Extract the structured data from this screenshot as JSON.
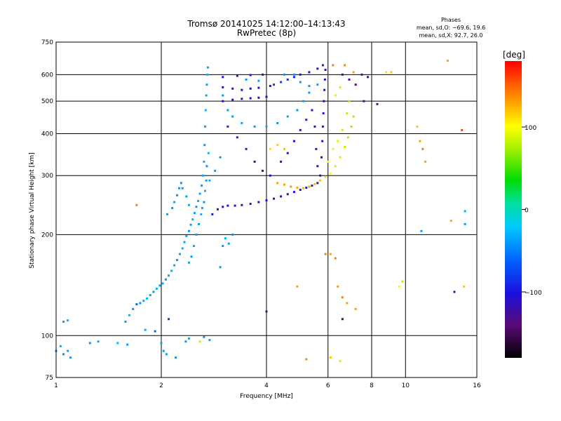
{
  "title_line1": "Tromsø 20141025 14:12:00–14:13:43",
  "title_line2": "RwPretec (8p)",
  "stats": {
    "heading": "Phases",
    "line1": "mean, sd,O: −69.6, 19.6",
    "line2": "mean, sd,X:  92.7, 26.0"
  },
  "colorbar": {
    "label": "[deg]",
    "range": [
      -180,
      180
    ],
    "ticks": [
      {
        "value": 100,
        "label": "100"
      },
      {
        "value": 0,
        "label": "0"
      },
      {
        "value": -100,
        "label": "−100"
      }
    ]
  },
  "chart_data": {
    "type": "scatter",
    "xlabel": "Frequency [MHz]",
    "ylabel": "Stationary phase Virtual Height [km]",
    "xscale": "log",
    "yscale": "log",
    "xlim": [
      1,
      16
    ],
    "ylim": [
      75,
      750
    ],
    "xticks": [
      {
        "value": 1,
        "label": "1"
      },
      {
        "value": 2,
        "label": "2"
      },
      {
        "value": 4,
        "label": "4"
      },
      {
        "value": 6,
        "label": "6"
      },
      {
        "value": 8,
        "label": "8"
      },
      {
        "value": 10,
        "label": "10"
      },
      {
        "value": 16,
        "label": "16"
      }
    ],
    "yticks": [
      {
        "value": 75,
        "label": "75"
      },
      {
        "value": 100,
        "label": "100"
      },
      {
        "value": 200,
        "label": "200"
      },
      {
        "value": 300,
        "label": "300"
      },
      {
        "value": 400,
        "label": "400"
      },
      {
        "value": 500,
        "label": "500"
      },
      {
        "value": 600,
        "label": "600"
      },
      {
        "value": 750,
        "label": "750"
      }
    ],
    "grid": true,
    "color_by": "phase",
    "points": [
      {
        "x": 1.0,
        "y": 90,
        "phase": -40
      },
      {
        "x": 1.03,
        "y": 93,
        "phase": -30
      },
      {
        "x": 1.05,
        "y": 88,
        "phase": -45
      },
      {
        "x": 1.08,
        "y": 90,
        "phase": -35
      },
      {
        "x": 1.1,
        "y": 86,
        "phase": -40
      },
      {
        "x": 1.05,
        "y": 110,
        "phase": -35
      },
      {
        "x": 1.08,
        "y": 111,
        "phase": -30
      },
      {
        "x": 1.25,
        "y": 95,
        "phase": -40
      },
      {
        "x": 1.32,
        "y": 96,
        "phase": -35
      },
      {
        "x": 1.5,
        "y": 95,
        "phase": -30
      },
      {
        "x": 1.6,
        "y": 94,
        "phase": -40
      },
      {
        "x": 1.58,
        "y": 110,
        "phase": -35
      },
      {
        "x": 1.62,
        "y": 115,
        "phase": -30
      },
      {
        "x": 1.66,
        "y": 120,
        "phase": -40
      },
      {
        "x": 1.7,
        "y": 124,
        "phase": -60
      },
      {
        "x": 1.74,
        "y": 125,
        "phase": -40
      },
      {
        "x": 1.78,
        "y": 127,
        "phase": -35
      },
      {
        "x": 1.82,
        "y": 129,
        "phase": -30
      },
      {
        "x": 1.86,
        "y": 132,
        "phase": -35
      },
      {
        "x": 1.9,
        "y": 135,
        "phase": -40
      },
      {
        "x": 1.94,
        "y": 138,
        "phase": -30
      },
      {
        "x": 1.98,
        "y": 141,
        "phase": -35
      },
      {
        "x": 2.02,
        "y": 143,
        "phase": -30
      },
      {
        "x": 2.06,
        "y": 147,
        "phase": -40
      },
      {
        "x": 2.1,
        "y": 151,
        "phase": -35
      },
      {
        "x": 2.14,
        "y": 156,
        "phase": -30
      },
      {
        "x": 2.18,
        "y": 162,
        "phase": -35
      },
      {
        "x": 2.22,
        "y": 168,
        "phase": -40
      },
      {
        "x": 2.26,
        "y": 175,
        "phase": -35
      },
      {
        "x": 2.3,
        "y": 182,
        "phase": -30
      },
      {
        "x": 2.33,
        "y": 190,
        "phase": -35
      },
      {
        "x": 2.36,
        "y": 198,
        "phase": -30
      },
      {
        "x": 2.4,
        "y": 205,
        "phase": -40
      },
      {
        "x": 2.43,
        "y": 214,
        "phase": -35
      },
      {
        "x": 2.46,
        "y": 222,
        "phase": -30
      },
      {
        "x": 2.49,
        "y": 232,
        "phase": -35
      },
      {
        "x": 2.52,
        "y": 242,
        "phase": -40
      },
      {
        "x": 2.55,
        "y": 252,
        "phase": -30
      },
      {
        "x": 2.58,
        "y": 265,
        "phase": -35
      },
      {
        "x": 2.61,
        "y": 280,
        "phase": -40
      },
      {
        "x": 2.63,
        "y": 300,
        "phase": -35
      },
      {
        "x": 2.65,
        "y": 330,
        "phase": -30
      },
      {
        "x": 2.66,
        "y": 370,
        "phase": -40
      },
      {
        "x": 2.67,
        "y": 420,
        "phase": -35
      },
      {
        "x": 2.68,
        "y": 470,
        "phase": -30
      },
      {
        "x": 2.69,
        "y": 520,
        "phase": -35
      },
      {
        "x": 2.7,
        "y": 560,
        "phase": -40
      },
      {
        "x": 2.71,
        "y": 600,
        "phase": -30
      },
      {
        "x": 2.72,
        "y": 630,
        "phase": -35
      },
      {
        "x": 2.52,
        "y": 200,
        "phase": -35
      },
      {
        "x": 2.56,
        "y": 215,
        "phase": -40
      },
      {
        "x": 2.6,
        "y": 230,
        "phase": -30
      },
      {
        "x": 2.48,
        "y": 185,
        "phase": -35
      },
      {
        "x": 2.44,
        "y": 172,
        "phase": -40
      },
      {
        "x": 2.4,
        "y": 165,
        "phase": -30
      },
      {
        "x": 2.62,
        "y": 240,
        "phase": -35
      },
      {
        "x": 2.65,
        "y": 250,
        "phase": -40
      },
      {
        "x": 2.67,
        "y": 270,
        "phase": -30
      },
      {
        "x": 2.69,
        "y": 290,
        "phase": -35
      },
      {
        "x": 2.7,
        "y": 320,
        "phase": -40
      },
      {
        "x": 2.73,
        "y": 350,
        "phase": -30
      },
      {
        "x": 2.15,
        "y": 240,
        "phase": -40
      },
      {
        "x": 2.18,
        "y": 250,
        "phase": -35
      },
      {
        "x": 2.22,
        "y": 262,
        "phase": -40
      },
      {
        "x": 2.25,
        "y": 275,
        "phase": -35
      },
      {
        "x": 2.28,
        "y": 285,
        "phase": -40
      },
      {
        "x": 2.08,
        "y": 230,
        "phase": -35
      },
      {
        "x": 2.0,
        "y": 95,
        "phase": -35
      },
      {
        "x": 2.03,
        "y": 90,
        "phase": -40
      },
      {
        "x": 2.07,
        "y": 88,
        "phase": -35
      },
      {
        "x": 2.2,
        "y": 86,
        "phase": -40
      },
      {
        "x": 2.35,
        "y": 96,
        "phase": -40
      },
      {
        "x": 2.4,
        "y": 98,
        "phase": -30
      },
      {
        "x": 2.65,
        "y": 99,
        "phase": -40
      },
      {
        "x": 2.75,
        "y": 97,
        "phase": -35
      },
      {
        "x": 1.92,
        "y": 103,
        "phase": -60
      },
      {
        "x": 2.1,
        "y": 112,
        "phase": -80
      },
      {
        "x": 1.8,
        "y": 104,
        "phase": -30
      },
      {
        "x": 1.7,
        "y": 245,
        "phase": 140
      },
      {
        "x": 2.58,
        "y": 96,
        "phase": 80
      },
      {
        "x": 3.0,
        "y": 185,
        "phase": -40
      },
      {
        "x": 3.12,
        "y": 188,
        "phase": -35
      },
      {
        "x": 3.05,
        "y": 195,
        "phase": -30
      },
      {
        "x": 3.2,
        "y": 200,
        "phase": -40
      },
      {
        "x": 2.95,
        "y": 160,
        "phase": -35
      },
      {
        "x": 2.8,
        "y": 230,
        "phase": -100
      },
      {
        "x": 2.9,
        "y": 238,
        "phase": -110
      },
      {
        "x": 3.0,
        "y": 242,
        "phase": -105
      },
      {
        "x": 3.1,
        "y": 244,
        "phase": -100
      },
      {
        "x": 3.25,
        "y": 244,
        "phase": -110
      },
      {
        "x": 3.4,
        "y": 245,
        "phase": -105
      },
      {
        "x": 3.6,
        "y": 247,
        "phase": -100
      },
      {
        "x": 3.8,
        "y": 250,
        "phase": -110
      },
      {
        "x": 4.0,
        "y": 253,
        "phase": -105
      },
      {
        "x": 4.2,
        "y": 256,
        "phase": -100
      },
      {
        "x": 4.4,
        "y": 260,
        "phase": -105
      },
      {
        "x": 4.6,
        "y": 264,
        "phase": -110
      },
      {
        "x": 4.8,
        "y": 268,
        "phase": -100
      },
      {
        "x": 5.0,
        "y": 272,
        "phase": -105
      },
      {
        "x": 5.2,
        "y": 276,
        "phase": -100
      },
      {
        "x": 5.4,
        "y": 280,
        "phase": -110
      },
      {
        "x": 5.6,
        "y": 285,
        "phase": -105
      },
      {
        "x": 4.3,
        "y": 285,
        "phase": 130
      },
      {
        "x": 4.5,
        "y": 282,
        "phase": 130
      },
      {
        "x": 4.7,
        "y": 278,
        "phase": 135
      },
      {
        "x": 4.9,
        "y": 276,
        "phase": 130
      },
      {
        "x": 5.1,
        "y": 275,
        "phase": 125
      },
      {
        "x": 5.3,
        "y": 278,
        "phase": 130
      },
      {
        "x": 5.5,
        "y": 283,
        "phase": 125
      },
      {
        "x": 5.7,
        "y": 290,
        "phase": 120
      },
      {
        "x": 5.9,
        "y": 297,
        "phase": 110
      },
      {
        "x": 6.1,
        "y": 305,
        "phase": 100
      },
      {
        "x": 6.3,
        "y": 320,
        "phase": 90
      },
      {
        "x": 6.5,
        "y": 340,
        "phase": 85
      },
      {
        "x": 6.7,
        "y": 365,
        "phase": 80
      },
      {
        "x": 6.85,
        "y": 390,
        "phase": 75
      },
      {
        "x": 7.0,
        "y": 420,
        "phase": 70
      },
      {
        "x": 7.1,
        "y": 450,
        "phase": 75
      },
      {
        "x": 6.4,
        "y": 380,
        "phase": 90
      },
      {
        "x": 6.6,
        "y": 410,
        "phase": 85
      },
      {
        "x": 6.2,
        "y": 360,
        "phase": 95
      },
      {
        "x": 6.0,
        "y": 330,
        "phase": 100
      },
      {
        "x": 6.8,
        "y": 460,
        "phase": 80
      },
      {
        "x": 6.9,
        "y": 500,
        "phase": 75
      },
      {
        "x": 6.3,
        "y": 520,
        "phase": 90
      },
      {
        "x": 6.5,
        "y": 550,
        "phase": 85
      },
      {
        "x": 5.7,
        "y": 300,
        "phase": -100
      },
      {
        "x": 5.75,
        "y": 340,
        "phase": -110
      },
      {
        "x": 5.78,
        "y": 380,
        "phase": -105
      },
      {
        "x": 5.8,
        "y": 420,
        "phase": -100
      },
      {
        "x": 5.82,
        "y": 460,
        "phase": -105
      },
      {
        "x": 5.84,
        "y": 500,
        "phase": -110
      },
      {
        "x": 5.86,
        "y": 540,
        "phase": -100
      },
      {
        "x": 5.88,
        "y": 580,
        "phase": -105
      },
      {
        "x": 5.9,
        "y": 620,
        "phase": -110
      },
      {
        "x": 5.6,
        "y": 320,
        "phase": -100
      },
      {
        "x": 5.55,
        "y": 360,
        "phase": -105
      },
      {
        "x": 5.5,
        "y": 420,
        "phase": -110
      },
      {
        "x": 3.0,
        "y": 500,
        "phase": -100
      },
      {
        "x": 3.2,
        "y": 505,
        "phase": -110
      },
      {
        "x": 3.4,
        "y": 508,
        "phase": -105
      },
      {
        "x": 3.6,
        "y": 510,
        "phase": -100
      },
      {
        "x": 3.8,
        "y": 512,
        "phase": -110
      },
      {
        "x": 4.0,
        "y": 515,
        "phase": -105
      },
      {
        "x": 3.0,
        "y": 550,
        "phase": -100
      },
      {
        "x": 3.2,
        "y": 545,
        "phase": -110
      },
      {
        "x": 3.4,
        "y": 540,
        "phase": -105
      },
      {
        "x": 3.6,
        "y": 545,
        "phase": -100
      },
      {
        "x": 3.8,
        "y": 548,
        "phase": -105
      },
      {
        "x": 4.1,
        "y": 555,
        "phase": -110
      },
      {
        "x": 4.2,
        "y": 560,
        "phase": -80
      },
      {
        "x": 4.4,
        "y": 570,
        "phase": -80
      },
      {
        "x": 4.6,
        "y": 580,
        "phase": -85
      },
      {
        "x": 4.8,
        "y": 590,
        "phase": -90
      },
      {
        "x": 5.0,
        "y": 600,
        "phase": -100
      },
      {
        "x": 5.3,
        "y": 610,
        "phase": -105
      },
      {
        "x": 5.6,
        "y": 625,
        "phase": -110
      },
      {
        "x": 5.8,
        "y": 640,
        "phase": -100
      },
      {
        "x": 3.0,
        "y": 590,
        "phase": -105
      },
      {
        "x": 3.3,
        "y": 595,
        "phase": -110
      },
      {
        "x": 3.6,
        "y": 598,
        "phase": -100
      },
      {
        "x": 3.9,
        "y": 600,
        "phase": -105
      },
      {
        "x": 3.3,
        "y": 390,
        "phase": -90
      },
      {
        "x": 3.5,
        "y": 360,
        "phase": -95
      },
      {
        "x": 3.7,
        "y": 330,
        "phase": -100
      },
      {
        "x": 3.9,
        "y": 310,
        "phase": -105
      },
      {
        "x": 4.1,
        "y": 300,
        "phase": -100
      },
      {
        "x": 3.1,
        "y": 420,
        "phase": -90
      },
      {
        "x": 4.4,
        "y": 330,
        "phase": -95
      },
      {
        "x": 4.6,
        "y": 350,
        "phase": -100
      },
      {
        "x": 4.8,
        "y": 380,
        "phase": -105
      },
      {
        "x": 5.0,
        "y": 410,
        "phase": -100
      },
      {
        "x": 5.2,
        "y": 440,
        "phase": -95
      },
      {
        "x": 5.4,
        "y": 470,
        "phase": -100
      },
      {
        "x": 4.1,
        "y": 360,
        "phase": 110
      },
      {
        "x": 4.3,
        "y": 370,
        "phase": 115
      },
      {
        "x": 4.5,
        "y": 360,
        "phase": 120
      },
      {
        "x": 6.6,
        "y": 600,
        "phase": -120
      },
      {
        "x": 6.9,
        "y": 580,
        "phase": -130
      },
      {
        "x": 7.2,
        "y": 560,
        "phase": -125
      },
      {
        "x": 7.5,
        "y": 600,
        "phase": -120
      },
      {
        "x": 7.8,
        "y": 590,
        "phase": -110
      },
      {
        "x": 7.6,
        "y": 500,
        "phase": -120
      },
      {
        "x": 8.3,
        "y": 490,
        "phase": -120
      },
      {
        "x": 6.2,
        "y": 640,
        "phase": 140
      },
      {
        "x": 6.7,
        "y": 640,
        "phase": 140
      },
      {
        "x": 7.1,
        "y": 610,
        "phase": 130
      },
      {
        "x": 8.8,
        "y": 610,
        "phase": 110
      },
      {
        "x": 9.1,
        "y": 610,
        "phase": 120
      },
      {
        "x": 5.9,
        "y": 175,
        "phase": 140
      },
      {
        "x": 6.1,
        "y": 175,
        "phase": 130
      },
      {
        "x": 6.3,
        "y": 170,
        "phase": 140
      },
      {
        "x": 6.4,
        "y": 140,
        "phase": 130
      },
      {
        "x": 6.6,
        "y": 130,
        "phase": 140
      },
      {
        "x": 6.8,
        "y": 125,
        "phase": 130
      },
      {
        "x": 6.1,
        "y": 86,
        "phase": 120
      },
      {
        "x": 6.5,
        "y": 84,
        "phase": 110
      },
      {
        "x": 5.2,
        "y": 85,
        "phase": 140
      },
      {
        "x": 6.6,
        "y": 112,
        "phase": -150
      },
      {
        "x": 4.0,
        "y": 118,
        "phase": -120
      },
      {
        "x": 4.9,
        "y": 140,
        "phase": 130
      },
      {
        "x": 7.2,
        "y": 120,
        "phase": 130
      },
      {
        "x": 9.6,
        "y": 140,
        "phase": 100
      },
      {
        "x": 9.8,
        "y": 145,
        "phase": 80
      },
      {
        "x": 10.8,
        "y": 420,
        "phase": 120
      },
      {
        "x": 11.0,
        "y": 380,
        "phase": 130
      },
      {
        "x": 11.2,
        "y": 360,
        "phase": 140
      },
      {
        "x": 11.4,
        "y": 330,
        "phase": 130
      },
      {
        "x": 11.1,
        "y": 205,
        "phase": -40
      },
      {
        "x": 13.2,
        "y": 660,
        "phase": 130
      },
      {
        "x": 14.5,
        "y": 410,
        "phase": 160
      },
      {
        "x": 13.5,
        "y": 220,
        "phase": 130
      },
      {
        "x": 14.8,
        "y": 215,
        "phase": -40
      },
      {
        "x": 14.8,
        "y": 235,
        "phase": -30
      },
      {
        "x": 13.8,
        "y": 135,
        "phase": -120
      },
      {
        "x": 14.7,
        "y": 140,
        "phase": 120
      },
      {
        "x": 2.4,
        "y": 245,
        "phase": -30
      },
      {
        "x": 2.36,
        "y": 260,
        "phase": -35
      },
      {
        "x": 2.3,
        "y": 275,
        "phase": -40
      },
      {
        "x": 2.75,
        "y": 290,
        "phase": -30
      },
      {
        "x": 2.85,
        "y": 310,
        "phase": -35
      },
      {
        "x": 2.95,
        "y": 340,
        "phase": -40
      },
      {
        "x": 3.0,
        "y": 520,
        "phase": -40
      },
      {
        "x": 3.1,
        "y": 470,
        "phase": -35
      },
      {
        "x": 3.2,
        "y": 450,
        "phase": -40
      },
      {
        "x": 3.4,
        "y": 430,
        "phase": -35
      },
      {
        "x": 3.7,
        "y": 420,
        "phase": -40
      },
      {
        "x": 4.0,
        "y": 420,
        "phase": -35
      },
      {
        "x": 4.3,
        "y": 430,
        "phase": -40
      },
      {
        "x": 4.6,
        "y": 450,
        "phase": -35
      },
      {
        "x": 4.9,
        "y": 470,
        "phase": -40
      },
      {
        "x": 5.1,
        "y": 500,
        "phase": -35
      },
      {
        "x": 5.3,
        "y": 530,
        "phase": -40
      },
      {
        "x": 5.6,
        "y": 560,
        "phase": -35
      },
      {
        "x": 4.5,
        "y": 600,
        "phase": -40
      },
      {
        "x": 4.8,
        "y": 600,
        "phase": -35
      },
      {
        "x": 5.0,
        "y": 570,
        "phase": -40
      },
      {
        "x": 5.3,
        "y": 555,
        "phase": -35
      },
      {
        "x": 3.5,
        "y": 580,
        "phase": -40
      },
      {
        "x": 3.8,
        "y": 575,
        "phase": -35
      }
    ]
  }
}
